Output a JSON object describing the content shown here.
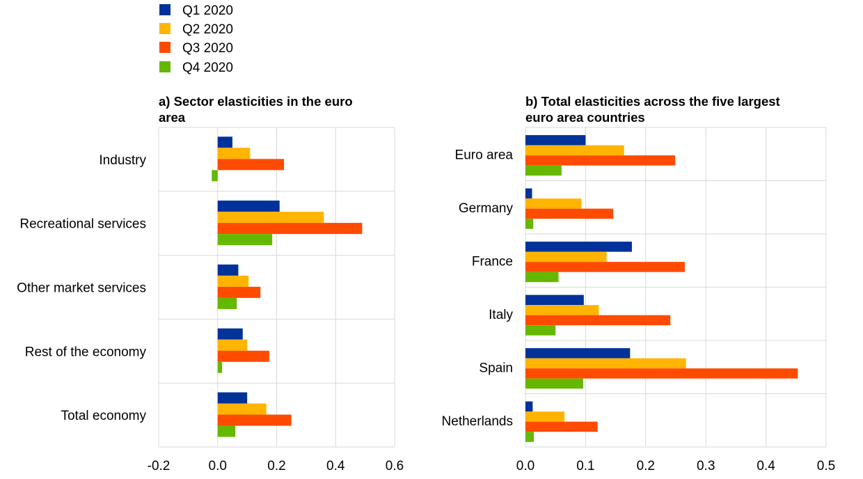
{
  "colors": {
    "Q1 2020": "#003299",
    "Q2 2020": "#FFB400",
    "Q3 2020": "#FF4B00",
    "Q4 2020": "#65B800",
    "grid": "#d9d9d9"
  },
  "legend": [
    "Q1 2020",
    "Q2 2020",
    "Q3 2020",
    "Q4 2020"
  ],
  "chart_data": [
    {
      "type": "bar",
      "orientation": "horizontal",
      "title_lines": [
        "a) Sector elasticities in the euro",
        "area"
      ],
      "categories": [
        "Industry",
        "Recreational services",
        "Other market services",
        "Rest of the economy",
        "Total economy"
      ],
      "series": [
        {
          "name": "Q1 2020",
          "values": [
            0.05,
            0.21,
            0.07,
            0.085,
            0.1
          ]
        },
        {
          "name": "Q2 2020",
          "values": [
            0.11,
            0.36,
            0.105,
            0.1,
            0.165
          ]
        },
        {
          "name": "Q3 2020",
          "values": [
            0.225,
            0.49,
            0.145,
            0.175,
            0.25
          ]
        },
        {
          "name": "Q4 2020",
          "values": [
            -0.02,
            0.185,
            0.065,
            0.015,
            0.06
          ]
        }
      ],
      "xlim": [
        -0.2,
        0.6
      ],
      "ticks": [
        -0.2,
        0.0,
        0.2,
        0.4,
        0.6
      ],
      "tick_labels": [
        "-0.2",
        "0.0",
        "0.2",
        "0.4",
        "0.6"
      ],
      "grid": true
    },
    {
      "type": "bar",
      "orientation": "horizontal",
      "title_lines": [
        "b) Total elasticities across the five largest",
        "euro area countries"
      ],
      "categories": [
        "Euro area",
        "Germany",
        "France",
        "Italy",
        "Spain",
        "Netherlands"
      ],
      "series": [
        {
          "name": "Q1 2020",
          "values": [
            0.1,
            0.011,
            0.177,
            0.097,
            0.174,
            0.012
          ]
        },
        {
          "name": "Q2 2020",
          "values": [
            0.164,
            0.093,
            0.135,
            0.122,
            0.267,
            0.065
          ]
        },
        {
          "name": "Q3 2020",
          "values": [
            0.249,
            0.146,
            0.265,
            0.241,
            0.453,
            0.12
          ]
        },
        {
          "name": "Q4 2020",
          "values": [
            0.06,
            0.013,
            0.055,
            0.05,
            0.096,
            0.014
          ]
        }
      ],
      "xlim": [
        0,
        0.5
      ],
      "ticks": [
        0,
        0.1,
        0.2,
        0.3,
        0.4,
        0.5
      ],
      "tick_labels": [
        "0.0",
        "0.1",
        "0.2",
        "0.3",
        "0.4",
        "0.5"
      ],
      "grid": true
    }
  ]
}
